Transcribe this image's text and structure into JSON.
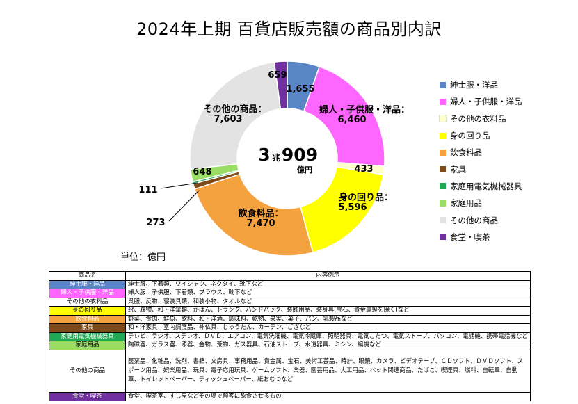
{
  "title": "2024年上期 百貨店販売額の商品別内訳",
  "unit_label": "単位：億円",
  "center": {
    "big_a": "3",
    "small": "兆",
    "big_b": "909",
    "unit": "億円"
  },
  "chart_data": {
    "type": "donut",
    "title": "2024年上期 百貨店販売額の商品別内訳",
    "total_text": "3兆909億円",
    "unit": "億円",
    "series": [
      {
        "name": "紳士服・洋品",
        "value": 1655,
        "value_label": "1,655",
        "label": "",
        "color": "#5B86C5"
      },
      {
        "name": "婦人・子供服・洋品",
        "value": 6460,
        "value_label": "6,460",
        "label": "婦人・子供服・洋品：",
        "color": "#FF66FF"
      },
      {
        "name": "その他の衣料品",
        "value": 433,
        "value_label": "433",
        "label": "",
        "color": "#FFFFCC"
      },
      {
        "name": "身の回り品",
        "value": 5596,
        "value_label": "5,596",
        "label": "身の回り品：",
        "color": "#FFFF00"
      },
      {
        "name": "飲食料品",
        "value": 7470,
        "value_label": "7,470",
        "label": "飲食料品：",
        "color": "#F4A23F"
      },
      {
        "name": "家具",
        "value": 273,
        "value_label": "273",
        "label": "",
        "color": "#7F4A1A"
      },
      {
        "name": "家庭用電気機械器具",
        "value": 111,
        "value_label": "111",
        "label": "",
        "color": "#21A854"
      },
      {
        "name": "家庭用品",
        "value": 648,
        "value_label": "648",
        "label": "",
        "color": "#99DD66"
      },
      {
        "name": "その他の商品",
        "value": 7603,
        "value_label": "7,603",
        "label": "その他の商品：",
        "color": "#E3E3E3"
      },
      {
        "name": "食堂・喫茶",
        "value": 659,
        "value_label": "659",
        "label": "",
        "color": "#7030A0"
      }
    ],
    "legend_position": "right"
  },
  "table": {
    "headers": [
      "商品名",
      "内容例示"
    ],
    "rows": [
      {
        "name": "紳士服・洋品",
        "bg": "#5B86C5",
        "fg": "#ffffff",
        "desc": "紳士服、下着類、ワイシャツ、ネクタイ、靴下など"
      },
      {
        "name": "婦人・子供服・洋品",
        "bg": "#FF66FF",
        "fg": "#ffffff",
        "desc": "婦人服、子供服、下着類、ブラウス、靴下など"
      },
      {
        "name": "その他の衣料品",
        "bg": "#ffffff",
        "fg": "#000000",
        "desc": "呉服、反物、寝装具類、和装小物、タオルなど"
      },
      {
        "name": "身の回り品",
        "bg": "#FFFF00",
        "fg": "#000000",
        "desc": "靴、履物、和・洋傘類、かばん、トランク、ハンドバッグ、装飾用品、装身具(宝石、貴金属製を除く)など"
      },
      {
        "name": "飲食料品",
        "bg": "#F4A23F",
        "fg": "#ffffff",
        "desc": "野菜、食肉、鮮魚、飲料、和・洋酒、調味料、乾物、果実、菓子、パン、乳製品など"
      },
      {
        "name": "家具",
        "bg": "#7F4A1A",
        "fg": "#ffffff",
        "desc": "和・洋家具、室内調度品、神仏具、じゅうたん、カーテン、ござなど"
      },
      {
        "name": "家庭用電気機械器具",
        "bg": "#21A854",
        "fg": "#ffffff",
        "desc": "テレビ、ラジオ、ステレオ、ＤＶＤ、エアコン、電気洗濯機、電気冷蔵庫、照明器具、電気こたつ、電気ストーブ、パソコン、電話機、携帯電話機など"
      },
      {
        "name": "家庭用品",
        "bg": "#99DD66",
        "fg": "#000000",
        "desc": "陶磁器、ガラス器、漆器、金物、荒物、ガス器具、石油ストーブ、水道器具、ミシン、編機など"
      },
      {
        "name": "その他の商品",
        "bg": "#ffffff",
        "fg": "#000000",
        "desc": "医薬品、化粧品、洗剤、書籍、文房具、事務用品、貴金属、宝石、美術工芸品、時計、眼鏡、カメラ、ビデオテープ、ＣＤソフト、ＤＶＤソフト、スポーツ用品、娯楽用品、玩具、電子応用玩具、ゲームソフト、楽器、園芸用品、大工用品、ペット関連商品、たばこ、喫煙具、燃料、自転車、自動車、トイレットペーパー、ティッシュペーパー、紙おむつなど"
      },
      {
        "name": "食堂・喫茶",
        "bg": "#7030A0",
        "fg": "#ffffff",
        "desc": "食堂、喫茶室、すし屋などその場で顧客に飲食させるもの"
      }
    ]
  }
}
